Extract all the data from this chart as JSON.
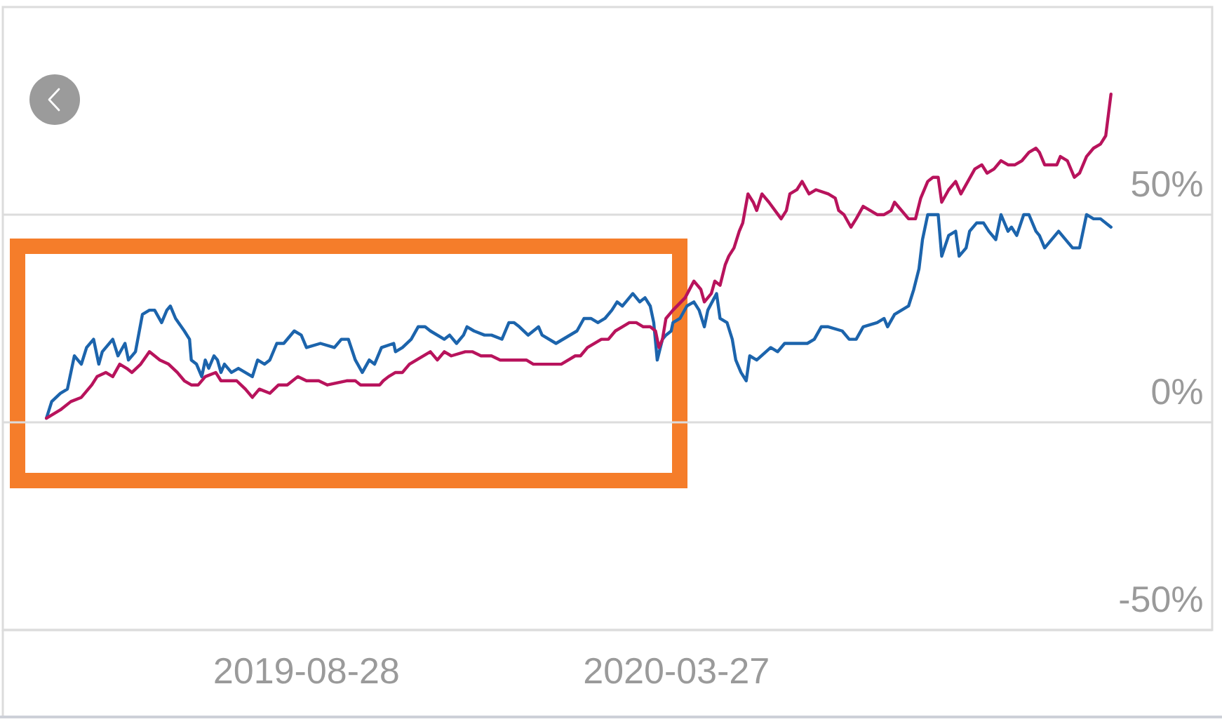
{
  "chart_data": {
    "type": "line",
    "xlim": [
      "2019-03-07",
      "2021-01-28"
    ],
    "ylim": [
      -50,
      100
    ],
    "xticks": [
      "2019-08-28",
      "2020-03-27"
    ],
    "yticks": [
      {
        "value": -50,
        "label": "-50%"
      },
      {
        "value": 0,
        "label": "0%"
      },
      {
        "value": 50,
        "label": "50%"
      }
    ],
    "grid": "y",
    "series": [
      {
        "color": "#1c64ac",
        "x": [
          "2019-04-01",
          "2019-04-04",
          "2019-04-09",
          "2019-04-13",
          "2019-04-17",
          "2019-04-21",
          "2019-04-24",
          "2019-04-28",
          "2019-05-01",
          "2019-05-03",
          "2019-05-09",
          "2019-05-12",
          "2019-05-16",
          "2019-05-18",
          "2019-05-22",
          "2019-05-26",
          "2019-05-30",
          "2019-06-02",
          "2019-06-06",
          "2019-06-09",
          "2019-06-11",
          "2019-06-14",
          "2019-06-19",
          "2019-06-22",
          "2019-06-23",
          "2019-06-26",
          "2019-06-29",
          "2019-07-01",
          "2019-07-03",
          "2019-07-06",
          "2019-07-08",
          "2019-07-10",
          "2019-07-12",
          "2019-07-16",
          "2019-07-20",
          "2019-07-24",
          "2019-07-28",
          "2019-07-31",
          "2019-08-04",
          "2019-08-07",
          "2019-08-11",
          "2019-08-15",
          "2019-08-21",
          "2019-08-25",
          "2019-08-28",
          "2019-09-05",
          "2019-09-13",
          "2019-09-17",
          "2019-09-21",
          "2019-09-25",
          "2019-09-29",
          "2019-10-03",
          "2019-10-06",
          "2019-10-10",
          "2019-10-17",
          "2019-10-18",
          "2019-10-22",
          "2019-10-27",
          "2019-10-31",
          "2019-11-04",
          "2019-11-07",
          "2019-11-15",
          "2019-11-18",
          "2019-11-22",
          "2019-11-26",
          "2019-11-28",
          "2019-12-02",
          "2019-12-08",
          "2019-12-12",
          "2019-12-18",
          "2019-12-22",
          "2019-12-25",
          "2019-12-28",
          "2020-01-02",
          "2020-01-05",
          "2020-01-08",
          "2020-01-10",
          "2020-01-18",
          "2020-01-22",
          "2020-01-30",
          "2020-02-03",
          "2020-02-07",
          "2020-02-11",
          "2020-02-15",
          "2020-02-19",
          "2020-02-22",
          "2020-02-25",
          "2020-02-27",
          "2020-03-02",
          "2020-03-06",
          "2020-03-09",
          "2020-03-12",
          "2020-03-14",
          "2020-03-16",
          "2020-03-19",
          "2020-03-21",
          "2020-03-24",
          "2020-03-25",
          "2020-03-29",
          "2020-04-02",
          "2020-04-06",
          "2020-04-09",
          "2020-04-12",
          "2020-04-14",
          "2020-04-19",
          "2020-04-21",
          "2020-04-25",
          "2020-04-28",
          "2020-04-30",
          "2020-05-03",
          "2020-05-06",
          "2020-05-08",
          "2020-05-12",
          "2020-05-20",
          "2020-05-24",
          "2020-05-28",
          "2020-06-01",
          "2020-06-10",
          "2020-06-14",
          "2020-06-18",
          "2020-06-22",
          "2020-06-30",
          "2020-07-04",
          "2020-07-08",
          "2020-07-12",
          "2020-07-20",
          "2020-07-24",
          "2020-07-26",
          "2020-07-30",
          "2020-08-03",
          "2020-08-07",
          "2020-08-10",
          "2020-08-13",
          "2020-08-15",
          "2020-08-18",
          "2020-08-24",
          "2020-08-26",
          "2020-08-30",
          "2020-09-03",
          "2020-09-05",
          "2020-09-09",
          "2020-09-11",
          "2020-09-15",
          "2020-09-19",
          "2020-09-22",
          "2020-09-26",
          "2020-09-29",
          "2020-10-03",
          "2020-10-05",
          "2020-10-08",
          "2020-10-12",
          "2020-10-15",
          "2020-10-19",
          "2020-10-21",
          "2020-10-24",
          "2020-10-28",
          "2020-11-01",
          "2020-11-05",
          "2020-11-09",
          "2020-11-13",
          "2020-11-17",
          "2020-11-21",
          "2020-11-25",
          "2020-12-01"
        ],
        "values": [
          1,
          5,
          7,
          8,
          16,
          14,
          18,
          20,
          14,
          17,
          20,
          16,
          19,
          15,
          17,
          26,
          27,
          27,
          24,
          27,
          28,
          25,
          22,
          20,
          15,
          14,
          11,
          15,
          13,
          16,
          15,
          12,
          14,
          12,
          13,
          12,
          11,
          15,
          14,
          15,
          19,
          19,
          22,
          21,
          18,
          19,
          18,
          20,
          20,
          15,
          12,
          15,
          14,
          18,
          19,
          17,
          18,
          20,
          23,
          23,
          22,
          20,
          21,
          19,
          21,
          23,
          22,
          21,
          21,
          20,
          24,
          24,
          23,
          21,
          22,
          23,
          21,
          19,
          20,
          22,
          25,
          25,
          24,
          25,
          27,
          29,
          28,
          29,
          31,
          29,
          30,
          28,
          24,
          15,
          20,
          21,
          22,
          24,
          25,
          28,
          29,
          27,
          23,
          27,
          31,
          25,
          24,
          20,
          15,
          12,
          10,
          16,
          15,
          18,
          17,
          19,
          19,
          19,
          20,
          23,
          23,
          22,
          20,
          20,
          23,
          24,
          25,
          23,
          26,
          27,
          28,
          32,
          37,
          44,
          50,
          50,
          40,
          45,
          46,
          40,
          42,
          46,
          48,
          48,
          46,
          44,
          50,
          46,
          47,
          45,
          50,
          50,
          46,
          45,
          42,
          44,
          46,
          44,
          42,
          42,
          50,
          49,
          49,
          47
        ]
      },
      {
        "color": "#b8135c",
        "x": [
          "2019-04-01",
          "2019-04-09",
          "2019-04-15",
          "2019-04-21",
          "2019-04-27",
          "2019-04-30",
          "2019-05-05",
          "2019-05-09",
          "2019-05-13",
          "2019-05-17",
          "2019-05-20",
          "2019-05-25",
          "2019-05-30",
          "2019-06-05",
          "2019-06-10",
          "2019-06-15",
          "2019-06-19",
          "2019-06-23",
          "2019-06-27",
          "2019-07-01",
          "2019-07-07",
          "2019-07-10",
          "2019-07-15",
          "2019-07-19",
          "2019-07-24",
          "2019-07-28",
          "2019-08-01",
          "2019-08-07",
          "2019-08-12",
          "2019-08-17",
          "2019-08-23",
          "2019-08-28",
          "2019-09-04",
          "2019-09-09",
          "2019-09-20",
          "2019-09-25",
          "2019-09-28",
          "2019-10-03",
          "2019-10-09",
          "2019-10-11",
          "2019-10-14",
          "2019-10-18",
          "2019-10-22",
          "2019-10-26",
          "2019-10-30",
          "2019-11-03",
          "2019-11-07",
          "2019-11-11",
          "2019-11-15",
          "2019-11-19",
          "2019-11-27",
          "2019-12-01",
          "2019-12-06",
          "2019-12-12",
          "2019-12-17",
          "2019-12-21",
          "2019-12-27",
          "2020-01-01",
          "2020-01-05",
          "2020-01-13",
          "2020-01-21",
          "2020-01-25",
          "2020-01-29",
          "2020-02-01",
          "2020-02-05",
          "2020-02-09",
          "2020-02-13",
          "2020-02-17",
          "2020-02-21",
          "2020-02-25",
          "2020-02-29",
          "2020-03-04",
          "2020-03-08",
          "2020-03-12",
          "2020-03-15",
          "2020-03-17",
          "2020-03-19",
          "2020-03-21",
          "2020-03-25",
          "2020-04-01",
          "2020-04-06",
          "2020-04-10",
          "2020-04-12",
          "2020-04-16",
          "2020-04-18",
          "2020-04-21",
          "2020-04-24",
          "2020-04-26",
          "2020-04-29",
          "2020-05-02",
          "2020-05-04",
          "2020-05-07",
          "2020-05-10",
          "2020-05-12",
          "2020-05-15",
          "2020-05-19",
          "2020-05-26",
          "2020-05-29",
          "2020-05-31",
          "2020-06-04",
          "2020-06-07",
          "2020-06-11",
          "2020-06-15",
          "2020-06-22",
          "2020-06-26",
          "2020-06-28",
          "2020-07-01",
          "2020-07-05",
          "2020-07-08",
          "2020-07-12",
          "2020-07-16",
          "2020-07-20",
          "2020-07-24",
          "2020-07-28",
          "2020-07-30",
          "2020-08-03",
          "2020-08-07",
          "2020-08-11",
          "2020-08-14",
          "2020-08-18",
          "2020-08-21",
          "2020-08-24",
          "2020-08-26",
          "2020-08-30",
          "2020-09-03",
          "2020-09-06",
          "2020-09-10",
          "2020-09-14",
          "2020-09-18",
          "2020-09-21",
          "2020-09-25",
          "2020-09-29",
          "2020-10-03",
          "2020-10-07",
          "2020-10-11",
          "2020-10-15",
          "2020-10-19",
          "2020-10-21",
          "2020-10-24",
          "2020-10-28",
          "2020-10-31",
          "2020-11-02",
          "2020-11-06",
          "2020-11-10",
          "2020-11-13",
          "2020-11-17",
          "2020-11-21",
          "2020-11-25",
          "2020-11-28",
          "2020-12-01"
        ],
        "values": [
          1,
          3,
          5,
          6,
          9,
          11,
          12,
          11,
          14,
          13,
          12,
          14,
          17,
          15,
          14,
          12,
          10,
          9,
          9,
          11,
          12,
          10,
          10,
          10,
          8,
          6,
          8,
          7,
          9,
          9,
          11,
          10,
          10,
          9,
          10,
          10,
          9,
          9,
          9,
          10,
          11,
          12,
          12,
          14,
          15,
          16,
          17,
          15,
          17,
          16,
          17,
          17,
          16,
          16,
          15,
          15,
          15,
          15,
          14,
          14,
          14,
          15,
          16,
          16,
          18,
          19,
          20,
          20,
          22,
          23,
          24,
          24,
          23,
          23,
          22,
          18,
          20,
          25,
          27,
          30,
          34,
          32,
          29,
          31,
          34,
          33,
          38,
          40,
          42,
          46,
          48,
          55,
          53,
          51,
          55,
          53,
          49,
          51,
          55,
          56,
          58,
          55,
          56,
          55,
          54,
          51,
          50,
          47,
          49,
          52,
          51,
          50,
          50,
          51,
          53,
          51,
          49,
          49,
          54,
          58,
          59,
          59,
          53,
          56,
          58,
          55,
          58,
          61,
          62,
          60,
          61,
          63,
          62,
          62,
          63,
          65,
          66,
          65,
          62,
          62,
          62,
          64,
          63,
          59,
          60,
          64,
          66,
          67,
          69,
          79
        ]
      }
    ]
  }
}
